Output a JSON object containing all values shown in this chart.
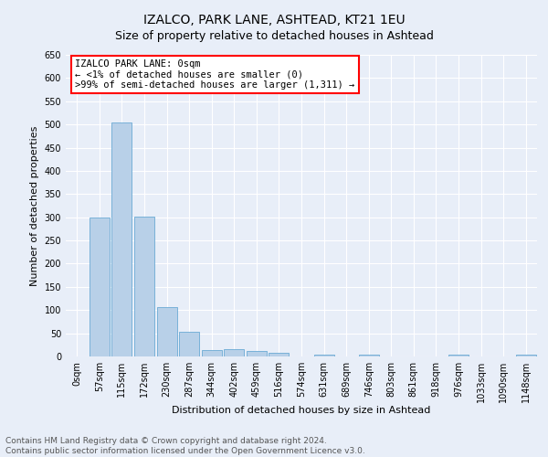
{
  "title": "IZALCO, PARK LANE, ASHTEAD, KT21 1EU",
  "subtitle": "Size of property relative to detached houses in Ashtead",
  "xlabel": "Distribution of detached houses by size in Ashtead",
  "ylabel": "Number of detached properties",
  "bin_labels": [
    "0sqm",
    "57sqm",
    "115sqm",
    "172sqm",
    "230sqm",
    "287sqm",
    "344sqm",
    "402sqm",
    "459sqm",
    "516sqm",
    "574sqm",
    "631sqm",
    "689sqm",
    "746sqm",
    "803sqm",
    "861sqm",
    "918sqm",
    "976sqm",
    "1033sqm",
    "1090sqm",
    "1148sqm"
  ],
  "bar_values": [
    0,
    300,
    505,
    302,
    107,
    53,
    13,
    15,
    12,
    8,
    0,
    3,
    0,
    4,
    0,
    0,
    0,
    3,
    0,
    0,
    4
  ],
  "bar_color": "#b8d0e8",
  "bar_edge_color": "#6aaad4",
  "ylim": [
    0,
    650
  ],
  "yticks": [
    0,
    50,
    100,
    150,
    200,
    250,
    300,
    350,
    400,
    450,
    500,
    550,
    600,
    650
  ],
  "annotation_title": "IZALCO PARK LANE: 0sqm",
  "annotation_line1": "← <1% of detached houses are smaller (0)",
  "annotation_line2": ">99% of semi-detached houses are larger (1,311) →",
  "background_color": "#e8eef8",
  "grid_color": "#ffffff",
  "title_fontsize": 10,
  "subtitle_fontsize": 9,
  "axis_label_fontsize": 8,
  "tick_fontsize": 7,
  "annotation_fontsize": 7.5,
  "footer_fontsize": 6.5,
  "footer_line1": "Contains HM Land Registry data © Crown copyright and database right 2024.",
  "footer_line2": "Contains public sector information licensed under the Open Government Licence v3.0."
}
